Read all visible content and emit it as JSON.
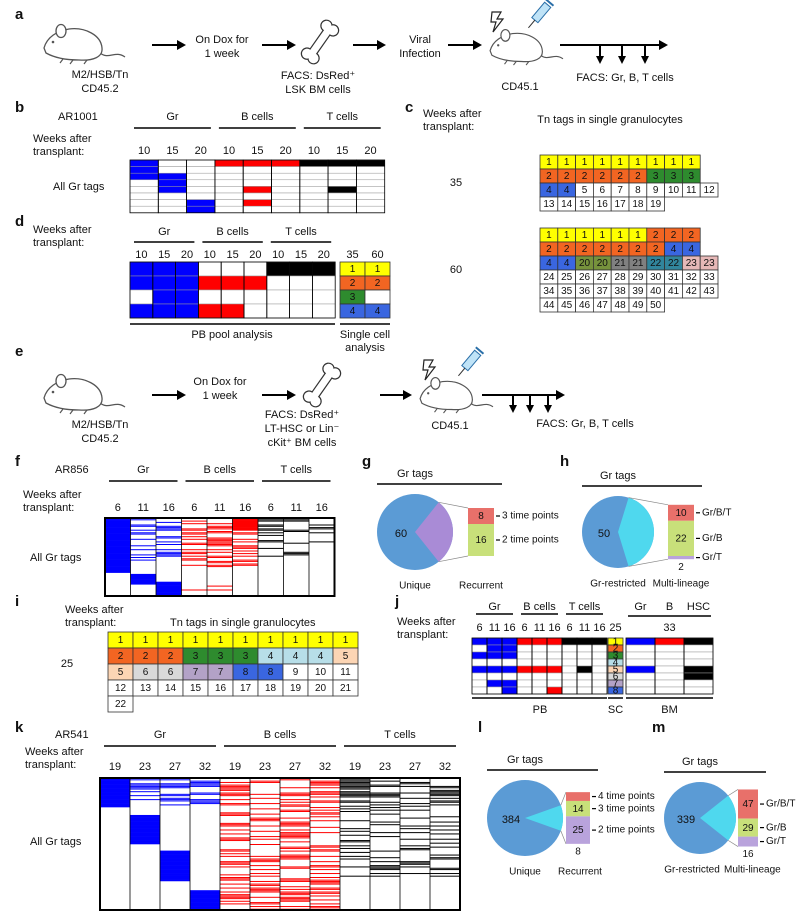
{
  "a": {
    "label": "a",
    "donor": [
      "M2/HSB/Tn",
      "CD45.2"
    ],
    "treatment": [
      "On Dox for",
      "1 week"
    ],
    "sort": [
      "FACS: DsRed⁺",
      "LSK BM cells"
    ],
    "infection": [
      "Viral",
      "Infection"
    ],
    "recipient": "CD45.1",
    "readout": "FACS: Gr, B, T cells"
  },
  "b": {
    "label": "b",
    "experiment": "AR1001",
    "groups": [
      "Gr",
      "B cells",
      "T cells"
    ],
    "weeks_label": [
      "Weeks after",
      "transplant:"
    ],
    "weeks": [
      10,
      15,
      20
    ],
    "row_label": "All Gr tags"
  },
  "c": {
    "label": "c",
    "weeks_label": [
      "Weeks after",
      "transplant:"
    ],
    "title": "Tn tags in single granulocytes",
    "blocks": [
      {
        "week": 35,
        "rows": [
          [
            1,
            1,
            1,
            1,
            1,
            1,
            1,
            1,
            1
          ],
          [
            2,
            2,
            2,
            2,
            2,
            2,
            3,
            3,
            3
          ],
          [
            4,
            4,
            5,
            6,
            7,
            8,
            9,
            10,
            11,
            12
          ],
          [
            13,
            14,
            15,
            16,
            17,
            18,
            19
          ]
        ]
      },
      {
        "week": 60,
        "rows": [
          [
            1,
            1,
            1,
            1,
            1,
            1,
            2,
            2,
            2
          ],
          [
            2,
            2,
            2,
            2,
            2,
            2,
            2,
            4,
            4
          ],
          [
            4,
            4,
            20,
            20,
            21,
            21,
            22,
            22,
            23,
            23
          ],
          [
            24,
            25,
            26,
            27,
            28,
            29,
            30,
            31,
            32,
            33
          ],
          [
            34,
            35,
            36,
            37,
            38,
            39,
            40,
            41,
            42,
            43
          ],
          [
            44,
            45,
            46,
            47,
            48,
            49,
            50
          ]
        ]
      }
    ],
    "colors": {
      "1": "#ffff00",
      "2": "#f26522",
      "3": "#2e8b2e",
      "4": "#3a66e0",
      "20": "#76923c",
      "21": "#808080",
      "22": "#31859c",
      "23": "#e6b8b7"
    }
  },
  "d": {
    "label": "d",
    "weeks_label": [
      "Weeks after",
      "transplant:"
    ],
    "groups": [
      "Gr",
      "B cells",
      "T cells"
    ],
    "weeks": [
      10,
      15,
      20
    ],
    "sc_weeks": [
      35,
      60
    ],
    "sc_rows": [
      [
        1,
        1
      ],
      [
        2,
        2
      ],
      [
        3,
        null
      ],
      [
        4,
        4
      ]
    ],
    "colors": {
      "1": "#ffff00",
      "2": "#f26522",
      "3": "#2e8b2e",
      "4": "#3a66e0"
    },
    "pb_label": "PB pool analysis",
    "sc_label": [
      "Single cell",
      "analysis"
    ]
  },
  "e": {
    "label": "e",
    "donor": [
      "M2/HSB/Tn",
      "CD45.2"
    ],
    "treatment": [
      "On Dox for",
      "1 week"
    ],
    "sort": [
      "FACS: DsRed⁺",
      "LT-HSC or  Lin⁻",
      "cKit⁺ BM cells"
    ],
    "recipient": "CD45.1",
    "readout": "FACS: Gr, B, T cells"
  },
  "f": {
    "label": "f",
    "experiment": "AR856",
    "groups": [
      "Gr",
      "B cells",
      "T cells"
    ],
    "weeks_label": [
      "Weeks after",
      "transplant:"
    ],
    "weeks": [
      6,
      11,
      16
    ],
    "row_label": "All Gr tags"
  },
  "g": {
    "label": "g",
    "title": "Gr tags",
    "unique": 60,
    "pie_color": "#5b9bd5",
    "wedge_color": "#a98bd6",
    "segments": [
      {
        "value": 8,
        "label": "3 time points",
        "color": "#e8706a"
      },
      {
        "value": 16,
        "label": "2 time points",
        "color": "#c8e07a"
      }
    ],
    "captions": [
      "Unique",
      "Recurrent"
    ]
  },
  "h": {
    "label": "h",
    "title": "Gr tags",
    "unique": 50,
    "pie_color": "#5b9bd5",
    "wedge_color": "#4fd8ee",
    "segments": [
      {
        "value": 10,
        "label": "Gr/B/T",
        "color": "#e8706a"
      },
      {
        "value": 22,
        "label": "Gr/B",
        "color": "#c8e07a"
      },
      {
        "value": 2,
        "label": "Gr/T",
        "color": "#b9a3dc"
      }
    ],
    "captions": [
      "Gr-restricted",
      "Multi-lineage"
    ]
  },
  "i": {
    "label": "i",
    "weeks_label": [
      "Weeks after",
      "transplant:"
    ],
    "title": "Tn tags in single granulocytes",
    "week": 25,
    "rows": [
      [
        1,
        1,
        1,
        1,
        1,
        1,
        1,
        1,
        1,
        1
      ],
      [
        2,
        2,
        2,
        3,
        3,
        3,
        4,
        4,
        4,
        5
      ],
      [
        5,
        6,
        6,
        7,
        7,
        8,
        8,
        9,
        10,
        11
      ],
      [
        12,
        13,
        14,
        15,
        16,
        17,
        18,
        19,
        20,
        21
      ],
      [
        22
      ]
    ],
    "colors": {
      "1": "#ffff00",
      "2": "#f26522",
      "3": "#2e8b2e",
      "4": "#b7dee8",
      "5": "#fcd5b4",
      "6": "#d9d9d9",
      "7": "#b3a2c7",
      "8": "#3a66e0"
    }
  },
  "j": {
    "label": "j",
    "weeks_label": [
      "Weeks after",
      "transplant:"
    ],
    "groups": [
      "Gr",
      "B cells",
      "T cells"
    ],
    "weeks": [
      6,
      11,
      16
    ],
    "sc_week": 25,
    "bm_groups": [
      "Gr",
      "B",
      "HSC"
    ],
    "bm_week": 33,
    "sc_tags": [
      1,
      2,
      3,
      4,
      5,
      6,
      7,
      8
    ],
    "colors": {
      "1": "#ffff00",
      "2": "#f26522",
      "3": "#2e8b2e",
      "4": "#b7dee8",
      "5": "#fcd5b4",
      "6": "#d9d9d9",
      "7": "#b3a2c7",
      "8": "#3a66e0"
    },
    "sections": [
      "PB",
      "SC",
      "BM"
    ]
  },
  "k": {
    "label": "k",
    "experiment": "AR541",
    "groups": [
      "Gr",
      "B cells",
      "T cells"
    ],
    "weeks_label": [
      "Weeks after",
      "transplant:"
    ],
    "weeks": [
      19,
      23,
      27,
      32
    ],
    "row_label": "All Gr tags"
  },
  "l": {
    "label": "l",
    "title": "Gr tags",
    "unique": 384,
    "pie_color": "#5b9bd5",
    "wedge_color": "#4fd8ee",
    "segments": [
      {
        "value": 8,
        "label": "4 time points",
        "color": "#e8706a"
      },
      {
        "value": 14,
        "label": "3 time points",
        "color": "#c8e07a"
      },
      {
        "value": 25,
        "label": "2 time points",
        "color": "#b9a3dc"
      }
    ],
    "captions": [
      "Unique",
      "Recurrent"
    ]
  },
  "m": {
    "label": "m",
    "title": "Gr tags",
    "unique": 339,
    "pie_color": "#5b9bd5",
    "wedge_color": "#4fd8ee",
    "segments": [
      {
        "value": 47,
        "label": "Gr/B/T",
        "color": "#e8706a"
      },
      {
        "value": 29,
        "label": "Gr/B",
        "color": "#c8e07a"
      },
      {
        "value": 16,
        "label": "Gr/T",
        "color": "#b9a3dc"
      }
    ],
    "captions": [
      "Gr-restricted",
      "Multi-lineage"
    ]
  }
}
